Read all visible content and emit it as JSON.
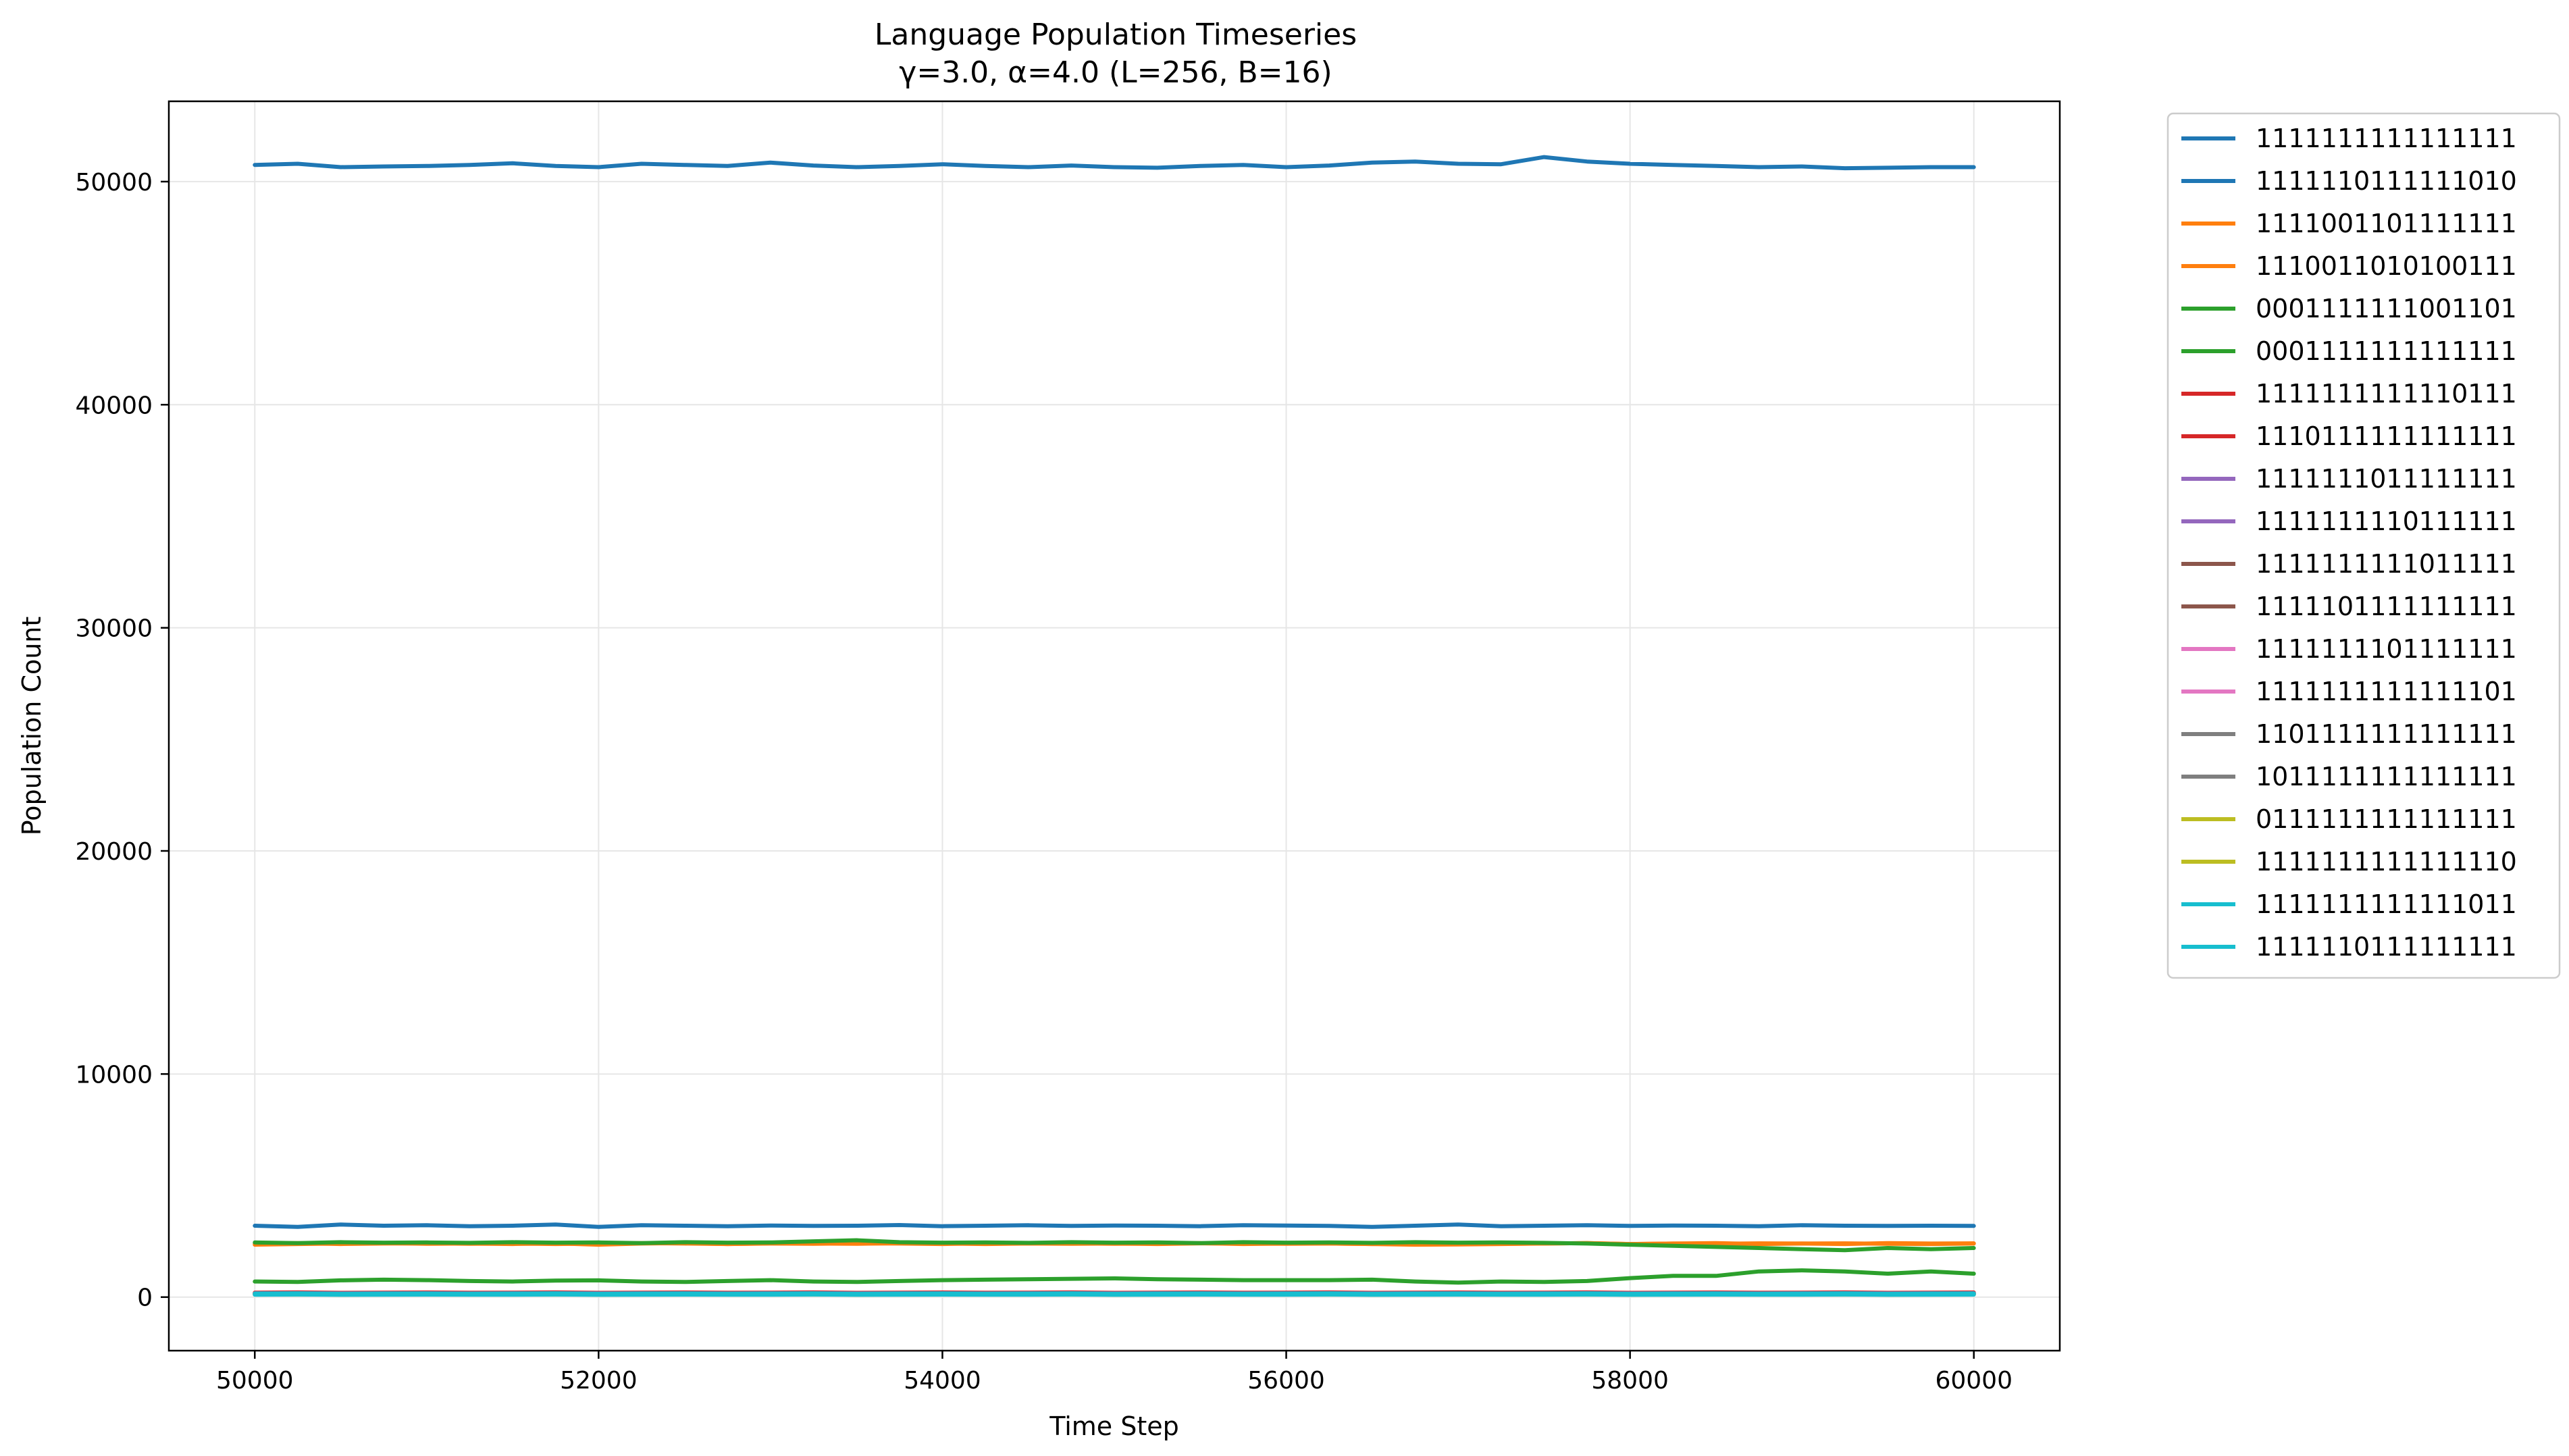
{
  "chart_data": {
    "type": "line",
    "title": "Language Population Timeseries",
    "subtitle": "γ=3.0, α=4.0 (L=256, B=16)",
    "xlabel": "Time Step",
    "ylabel": "Population Count",
    "xlim": [
      49500,
      60500
    ],
    "ylim": [
      -2400,
      53600
    ],
    "xticks": [
      50000,
      52000,
      54000,
      56000,
      58000,
      60000
    ],
    "yticks": [
      0,
      10000,
      20000,
      30000,
      40000,
      50000
    ],
    "grid": true,
    "legend_position": "outside-right",
    "x_start": 50000,
    "x_end": 60000,
    "series": [
      {
        "name": "1111111111111111",
        "color": "#1f77b4",
        "values": [
          50750,
          50800,
          50650,
          50680,
          50700,
          50750,
          50820,
          50700,
          50650,
          50800,
          50750,
          50700,
          50850,
          50720,
          50650,
          50700,
          50780,
          50700,
          50650,
          50720,
          50650,
          50620,
          50700,
          50750,
          50650,
          50720,
          50850,
          50900,
          50800,
          50780,
          51100,
          50900,
          50800,
          50750,
          50700,
          50650,
          50680,
          50600,
          50620,
          50650,
          50650
        ]
      },
      {
        "name": "1111110111111010",
        "color": "#1f77b4",
        "values": [
          3200,
          3150,
          3250,
          3200,
          3220,
          3180,
          3200,
          3250,
          3150,
          3220,
          3200,
          3180,
          3210,
          3190,
          3200,
          3230,
          3180,
          3200,
          3220,
          3190,
          3210,
          3200,
          3180,
          3220,
          3210,
          3190,
          3150,
          3200,
          3250,
          3180,
          3200,
          3220,
          3190,
          3210,
          3200,
          3180,
          3220,
          3200,
          3190,
          3200,
          3190
        ]
      },
      {
        "name": "1111001101111111",
        "color": "#ff7f0e",
        "values": [
          2350,
          2380,
          2400,
          2420,
          2390,
          2400,
          2380,
          2410,
          2350,
          2400,
          2420,
          2380,
          2400,
          2390,
          2410,
          2400,
          2380,
          2420,
          2400,
          2390,
          2400,
          2380,
          2410,
          2400,
          2390,
          2400,
          2380,
          2350,
          2360,
          2380,
          2400,
          2420,
          2380,
          2400,
          2420,
          2380,
          2400,
          2410,
          2390,
          2380,
          2400
        ]
      },
      {
        "name": "1110011010100111",
        "color": "#ff7f0e",
        "values": [
          2400,
          2420,
          2380,
          2400,
          2410,
          2390,
          2400,
          2380,
          2400,
          2420,
          2400,
          2380,
          2410,
          2400,
          2390,
          2420,
          2400,
          2380,
          2400,
          2410,
          2390,
          2400,
          2420,
          2380,
          2400,
          2400,
          2380,
          2410,
          2400,
          2390,
          2400,
          2420,
          2380,
          2400,
          2390,
          2410,
          2400,
          2380,
          2420,
          2400,
          2410
        ]
      },
      {
        "name": "0001111111001101",
        "color": "#2ca02c",
        "values": [
          2450,
          2420,
          2460,
          2440,
          2450,
          2430,
          2460,
          2440,
          2450,
          2420,
          2460,
          2440,
          2450,
          2500,
          2550,
          2460,
          2440,
          2450,
          2430,
          2460,
          2440,
          2450,
          2420,
          2460,
          2440,
          2450,
          2430,
          2460,
          2440,
          2450,
          2430,
          2400,
          2350,
          2300,
          2250,
          2200,
          2150,
          2100,
          2200,
          2150,
          2200
        ]
      },
      {
        "name": "0001111111111111",
        "color": "#2ca02c",
        "values": [
          700,
          680,
          750,
          780,
          760,
          720,
          700,
          740,
          750,
          700,
          680,
          720,
          760,
          700,
          680,
          720,
          760,
          780,
          800,
          820,
          840,
          800,
          780,
          760,
          760,
          760,
          780,
          700,
          650,
          700,
          680,
          720,
          850,
          950,
          950,
          1150,
          1200,
          1150,
          1050,
          1150,
          1050
        ]
      },
      {
        "name": "1111111111110111",
        "color": "#d62728",
        "values": [
          200,
          210,
          190,
          200,
          205,
          195,
          200,
          210,
          190,
          200,
          205,
          195,
          200,
          210,
          190,
          200,
          205,
          195,
          200,
          210,
          190,
          200,
          205,
          195,
          200,
          210,
          190,
          200,
          205,
          195,
          200,
          210,
          190,
          200,
          205,
          195,
          200,
          210,
          190,
          200,
          205
        ]
      },
      {
        "name": "1110111111111111",
        "color": "#d62728",
        "values": [
          180,
          190,
          170,
          180,
          185,
          175,
          180,
          190,
          170,
          180,
          185,
          175,
          180,
          190,
          170,
          180,
          185,
          175,
          180,
          190,
          170,
          180,
          185,
          175,
          180,
          190,
          170,
          180,
          185,
          175,
          180,
          190,
          170,
          180,
          185,
          175,
          180,
          190,
          170,
          180,
          185
        ]
      },
      {
        "name": "1111111011111111",
        "color": "#9467bd",
        "values": [
          170,
          175,
          165,
          170,
          172,
          168,
          170,
          175,
          165,
          170,
          172,
          168,
          170,
          175,
          165,
          170,
          172,
          168,
          170,
          175,
          165,
          170,
          172,
          168,
          170,
          175,
          165,
          170,
          172,
          168,
          170,
          175,
          165,
          170,
          172,
          168,
          170,
          175,
          165,
          170,
          172
        ]
      },
      {
        "name": "1111111110111111",
        "color": "#9467bd",
        "values": [
          160,
          165,
          155,
          160,
          162,
          158,
          160,
          165,
          155,
          160,
          162,
          158,
          160,
          165,
          155,
          160,
          162,
          158,
          160,
          165,
          155,
          160,
          162,
          158,
          160,
          165,
          155,
          160,
          162,
          158,
          160,
          165,
          155,
          160,
          162,
          158,
          160,
          165,
          155,
          160,
          162
        ]
      },
      {
        "name": "1111111111011111",
        "color": "#8c564b",
        "values": [
          150,
          155,
          145,
          150,
          152,
          148,
          150,
          155,
          145,
          150,
          152,
          148,
          150,
          155,
          145,
          150,
          152,
          148,
          150,
          155,
          145,
          150,
          152,
          148,
          150,
          155,
          145,
          150,
          152,
          148,
          150,
          155,
          145,
          150,
          152,
          148,
          150,
          155,
          145,
          150,
          152
        ]
      },
      {
        "name": "1111101111111111",
        "color": "#8c564b",
        "values": [
          145,
          150,
          140,
          145,
          148,
          142,
          145,
          150,
          140,
          145,
          148,
          142,
          145,
          150,
          140,
          145,
          148,
          142,
          145,
          150,
          140,
          145,
          148,
          142,
          145,
          150,
          140,
          145,
          148,
          142,
          145,
          150,
          140,
          145,
          148,
          142,
          145,
          150,
          140,
          145,
          148
        ]
      },
      {
        "name": "1111111101111111",
        "color": "#e377c2",
        "values": [
          140,
          145,
          135,
          140,
          142,
          138,
          140,
          145,
          135,
          140,
          142,
          138,
          140,
          145,
          135,
          140,
          142,
          138,
          140,
          145,
          135,
          140,
          142,
          138,
          140,
          145,
          135,
          140,
          142,
          138,
          140,
          145,
          135,
          140,
          142,
          138,
          140,
          145,
          135,
          140,
          142
        ]
      },
      {
        "name": "1111111111111101",
        "color": "#e377c2",
        "values": [
          135,
          140,
          130,
          135,
          138,
          132,
          135,
          140,
          130,
          135,
          138,
          132,
          135,
          140,
          130,
          135,
          138,
          132,
          135,
          140,
          130,
          135,
          138,
          132,
          135,
          140,
          130,
          135,
          138,
          132,
          135,
          140,
          130,
          135,
          138,
          132,
          135,
          140,
          130,
          135,
          138
        ]
      },
      {
        "name": "1101111111111111",
        "color": "#7f7f7f",
        "values": [
          130,
          135,
          125,
          130,
          132,
          128,
          130,
          135,
          125,
          130,
          132,
          128,
          130,
          135,
          125,
          130,
          132,
          128,
          130,
          135,
          125,
          130,
          132,
          128,
          130,
          135,
          125,
          130,
          132,
          128,
          130,
          135,
          125,
          130,
          132,
          128,
          130,
          135,
          125,
          130,
          132
        ]
      },
      {
        "name": "1011111111111111",
        "color": "#7f7f7f",
        "values": [
          125,
          130,
          120,
          125,
          128,
          122,
          125,
          130,
          120,
          125,
          128,
          122,
          125,
          130,
          120,
          125,
          128,
          122,
          125,
          130,
          120,
          125,
          128,
          122,
          125,
          130,
          120,
          125,
          128,
          122,
          125,
          130,
          120,
          125,
          128,
          122,
          125,
          130,
          120,
          125,
          128
        ]
      },
      {
        "name": "0111111111111111",
        "color": "#bcbd22",
        "values": [
          120,
          125,
          115,
          120,
          122,
          118,
          120,
          125,
          115,
          120,
          122,
          118,
          120,
          125,
          115,
          120,
          122,
          118,
          120,
          125,
          115,
          120,
          122,
          118,
          120,
          125,
          115,
          120,
          122,
          118,
          120,
          125,
          115,
          120,
          122,
          118,
          120,
          125,
          115,
          120,
          122
        ]
      },
      {
        "name": "1111111111111110",
        "color": "#bcbd22",
        "values": [
          115,
          120,
          110,
          115,
          118,
          112,
          115,
          120,
          110,
          115,
          118,
          112,
          115,
          120,
          110,
          115,
          118,
          112,
          115,
          120,
          110,
          115,
          118,
          112,
          115,
          120,
          110,
          115,
          118,
          112,
          115,
          120,
          110,
          115,
          118,
          112,
          115,
          120,
          110,
          115,
          118
        ]
      },
      {
        "name": "1111111111111011",
        "color": "#17becf",
        "values": [
          160,
          170,
          150,
          160,
          165,
          155,
          160,
          170,
          150,
          160,
          165,
          155,
          160,
          170,
          150,
          160,
          165,
          155,
          160,
          170,
          150,
          160,
          165,
          155,
          160,
          170,
          150,
          160,
          165,
          155,
          160,
          170,
          150,
          160,
          165,
          155,
          160,
          170,
          150,
          160,
          165
        ]
      },
      {
        "name": "1111110111111111",
        "color": "#17becf",
        "values": [
          110,
          115,
          105,
          110,
          112,
          108,
          110,
          115,
          105,
          110,
          112,
          108,
          110,
          115,
          105,
          110,
          112,
          108,
          110,
          115,
          105,
          110,
          112,
          108,
          110,
          115,
          105,
          110,
          112,
          108,
          110,
          115,
          105,
          110,
          112,
          108,
          110,
          115,
          105,
          110,
          112
        ]
      }
    ]
  }
}
